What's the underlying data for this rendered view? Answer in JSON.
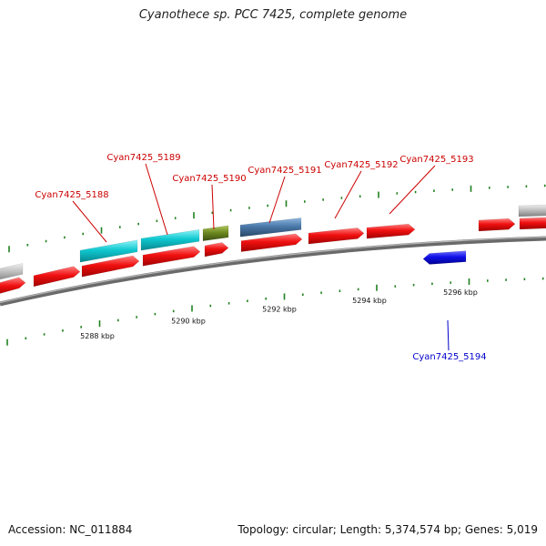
{
  "title": "Cyanothece sp. PCC 7425, complete genome",
  "footer": {
    "accession": "Accession: NC_011884",
    "stats": "Topology: circular; Length: 5,374,574 bp; Genes: 5,019"
  },
  "colors": {
    "forward_gene": "#f01010",
    "reverse_gene": "#1010e8",
    "cyan_feature": "#10c8d0",
    "olive_feature": "#6e8a20",
    "steel_feature": "#4a78a8",
    "gray_feature": "#c0c0c0",
    "backbone": "#808080",
    "tick": "#208020",
    "label_forward": "#cc0000",
    "label_reverse": "#0000cc"
  },
  "scale_labels": [
    "5288 kbp",
    "5290 kbp",
    "5292 kbp",
    "5294 kbp",
    "5296 kbp"
  ],
  "gene_labels": [
    {
      "text": "Cyan7425_5188",
      "strand": "forward"
    },
    {
      "text": "Cyan7425_5189",
      "strand": "forward"
    },
    {
      "text": "Cyan7425_5190",
      "strand": "forward"
    },
    {
      "text": "Cyan7425_5191",
      "strand": "forward"
    },
    {
      "text": "Cyan7425_5192",
      "strand": "forward"
    },
    {
      "text": "Cyan7425_5193",
      "strand": "forward"
    },
    {
      "text": "Cyan7425_5194",
      "strand": "reverse"
    }
  ]
}
